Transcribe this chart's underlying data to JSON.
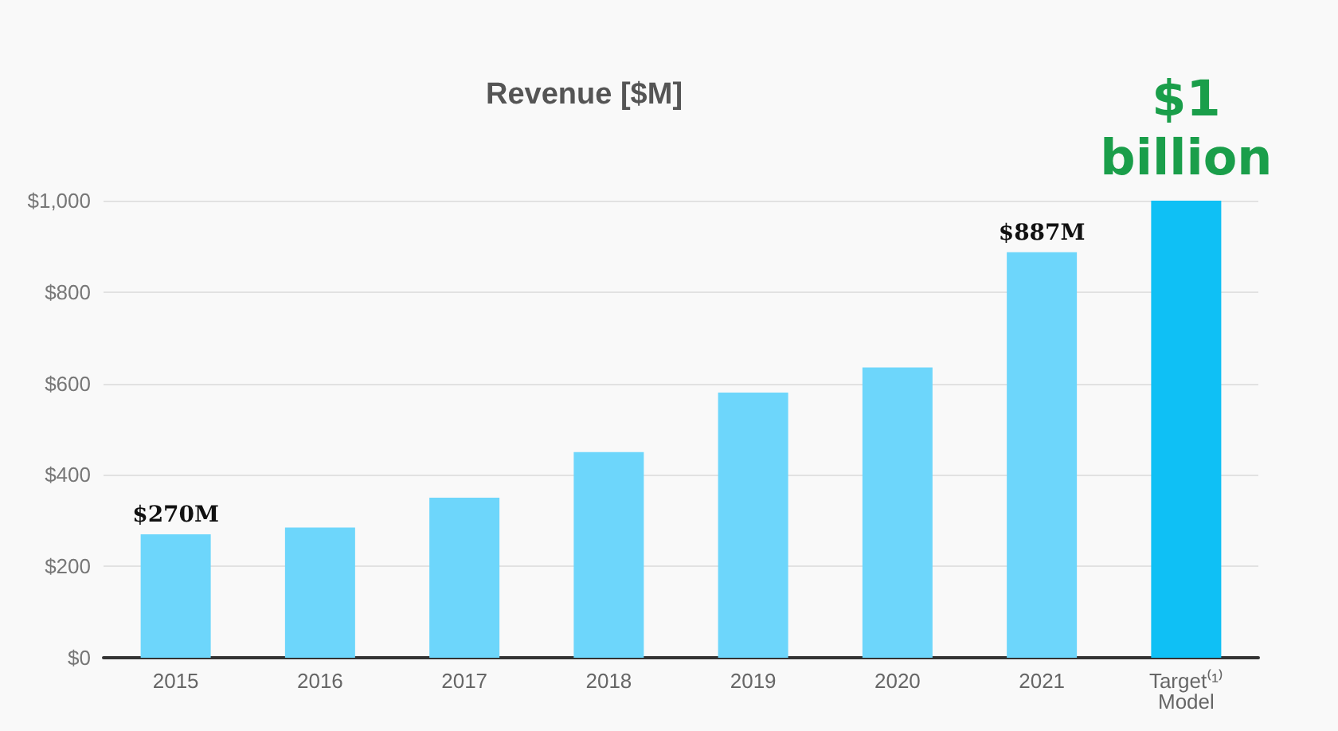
{
  "chart_data": {
    "type": "bar",
    "title": "Revenue [$M]",
    "categories": [
      "2015",
      "2016",
      "2017",
      "2018",
      "2019",
      "2020",
      "2021",
      "Target⁽¹⁾ Model"
    ],
    "values": [
      270,
      285,
      350,
      450,
      580,
      635,
      887,
      1000
    ],
    "colors": [
      "#6dd6fb",
      "#6dd6fb",
      "#6dd6fb",
      "#6dd6fb",
      "#6dd6fb",
      "#6dd6fb",
      "#6dd6fb",
      "#0fc0f5"
    ],
    "value_labels": [
      "$270M",
      null,
      null,
      null,
      null,
      null,
      "$887M",
      null
    ],
    "annotations": [
      {
        "text": "$1 billion",
        "x": "Target⁽¹⁾ Model",
        "y": 1000
      }
    ],
    "ylim": [
      0,
      1000
    ],
    "yticks": [
      {
        "value": 0,
        "label": "$0"
      },
      {
        "value": 200,
        "label": "$200"
      },
      {
        "value": 400,
        "label": "$400"
      },
      {
        "value": 600,
        "label": "$600"
      },
      {
        "value": 800,
        "label": "$800"
      },
      {
        "value": 1000,
        "label": "$1,000"
      }
    ],
    "grid": true
  }
}
